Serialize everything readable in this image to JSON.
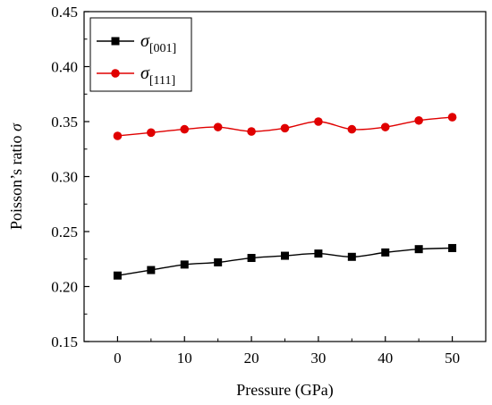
{
  "chart_data": {
    "type": "line",
    "title": "",
    "xlabel": "Pressure (GPa)",
    "ylabel_main": "Poisson’s ratio ",
    "ylabel_symbol": "σ",
    "x": [
      0,
      5,
      10,
      15,
      20,
      25,
      30,
      35,
      40,
      45,
      50
    ],
    "xlim": [
      -5,
      55
    ],
    "ylim": [
      0.15,
      0.45
    ],
    "xticks": [
      0,
      10,
      20,
      30,
      40,
      50
    ],
    "yticks": [
      0.15,
      0.2,
      0.25,
      0.3,
      0.35,
      0.4,
      0.45
    ],
    "xtick_labels": [
      "0",
      "10",
      "20",
      "30",
      "40",
      "50"
    ],
    "ytick_labels": [
      "0.15",
      "0.20",
      "0.25",
      "0.30",
      "0.35",
      "0.40",
      "0.45"
    ],
    "legend_position": "top-left",
    "grid": false,
    "series": [
      {
        "symbol": "σ",
        "subscript": "[001]",
        "marker": "square",
        "color": "#000000",
        "values": [
          0.21,
          0.215,
          0.22,
          0.222,
          0.226,
          0.228,
          0.23,
          0.227,
          0.231,
          0.234,
          0.235
        ]
      },
      {
        "symbol": "σ",
        "subscript": "[111]",
        "marker": "circle",
        "color": "#e00000",
        "values": [
          0.337,
          0.34,
          0.343,
          0.345,
          0.341,
          0.344,
          0.35,
          0.343,
          0.345,
          0.351,
          0.354
        ]
      }
    ]
  }
}
